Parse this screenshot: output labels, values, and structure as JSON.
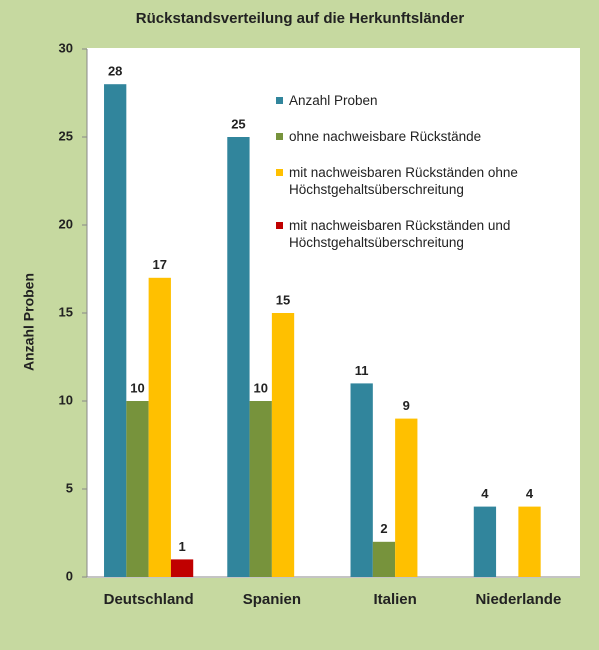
{
  "chart_data": {
    "type": "bar",
    "title": "Rückstandsverteilung auf die Herkunftsländer",
    "y_label": "Anzahl Proben",
    "categories": [
      "Deutschland",
      "Spanien",
      "Italien",
      "Niederlande"
    ],
    "series": [
      {
        "name": "Anzahl Proben",
        "color": "#31859c",
        "values": [
          28,
          25,
          11,
          4
        ]
      },
      {
        "name": "ohne nachweisbare Rückstände",
        "color": "#77933c",
        "values": [
          10,
          10,
          2,
          null
        ]
      },
      {
        "name": "mit nachweisbaren Rückständen ohne Höchstgehaltsüberschreitung",
        "color": "#ffc000",
        "values": [
          17,
          15,
          9,
          4
        ]
      },
      {
        "name": "mit nachweisbaren Rückständen und Höchstgehaltsüberschreitung",
        "color": "#c00000",
        "values": [
          1,
          null,
          null,
          null
        ]
      }
    ],
    "ylim": [
      0,
      30
    ],
    "yticks": [
      0,
      5,
      10,
      15,
      20,
      25,
      30
    ],
    "grid": false
  }
}
